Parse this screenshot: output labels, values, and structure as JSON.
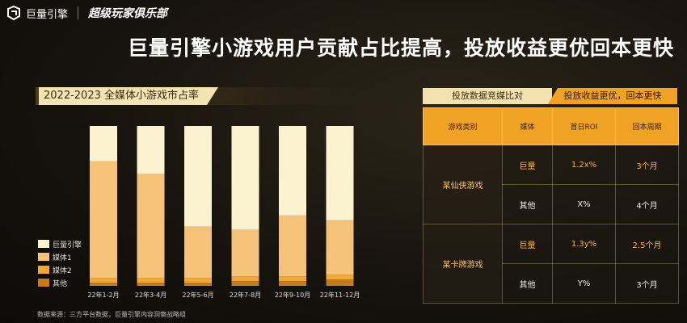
{
  "brand": {
    "name": "巨量引擎",
    "club": "超级玩家俱乐部"
  },
  "headline": "巨量引擎小游戏用户贡献占比提高，投放收益更优回本更快",
  "chart_data": {
    "type": "bar",
    "stacked": true,
    "title": "2022-2023 全媒体小游戏市占率",
    "categories": [
      "22年1-2月",
      "22年3-4月",
      "22年5-6月",
      "22年7-8月",
      "22年9-10月",
      "22年11-12月"
    ],
    "series": [
      {
        "name": "其他",
        "color": "#c57a1c",
        "values": [
          2,
          2,
          2,
          3,
          3,
          4
        ]
      },
      {
        "name": "媒体2",
        "color": "#f0a83a",
        "values": [
          3,
          3,
          3,
          3,
          3,
          3
        ]
      },
      {
        "name": "媒体1",
        "color": "#f5c27a",
        "values": [
          73,
          65,
          32,
          29,
          38,
          34
        ]
      },
      {
        "name": "巨量引擎",
        "color": "#fbf2cf",
        "values": [
          22,
          30,
          63,
          65,
          56,
          59
        ]
      }
    ],
    "ylim": [
      0,
      100
    ],
    "legend_position": "left",
    "xlabel": "",
    "ylabel": ""
  },
  "source_note": "数据来源：三方平台数据，巨量引擎内容洞察战略组",
  "comparison": {
    "title_left": "投放数据竞媒比对",
    "title_right": "投放收益更优，回本更快",
    "headers": [
      "游戏类别",
      "媒体",
      "首日ROI",
      "回本周期"
    ],
    "groups": [
      {
        "game": "某仙侠游戏",
        "rows": [
          {
            "media": "巨量",
            "roi": "1.2x%",
            "period": "3个月"
          },
          {
            "media": "其他",
            "roi": "X%",
            "period": "4个月"
          }
        ]
      },
      {
        "game": "某卡牌游戏",
        "rows": [
          {
            "media": "巨量",
            "roi": "1.3y%",
            "period": "2.5个月"
          },
          {
            "media": "其他",
            "roi": "Y%",
            "period": "3个月"
          }
        ]
      }
    ]
  }
}
